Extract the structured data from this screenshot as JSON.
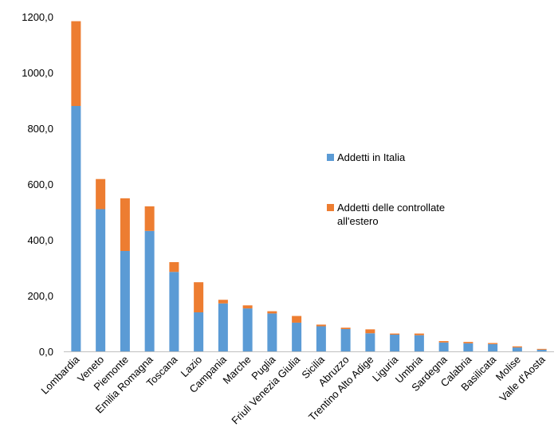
{
  "chart_data": {
    "type": "bar",
    "stacked": true,
    "categories": [
      "Lombardia",
      "Veneto",
      "Piemonte",
      "Emilia Romagna",
      "Toscana",
      "Lazio",
      "Campania",
      "Marche",
      "Puglia",
      "Friuli Venezia Giulia",
      "Sicilia",
      "Abruzzo",
      "Trentino Alto Adige",
      "Liguria",
      "Umbria",
      "Sardegna",
      "Calabria",
      "Basilicata",
      "Molise",
      "Valle d'Aosta"
    ],
    "series": [
      {
        "name": "Addetti in Italia",
        "color": "#5b9bd5",
        "values": [
          880,
          510,
          360,
          432,
          285,
          140,
          172,
          154,
          136,
          103,
          90,
          80,
          65,
          60,
          58,
          32,
          29,
          26,
          14,
          6
        ]
      },
      {
        "name": "Addetti delle controllate all'estero",
        "color": "#ed7d31",
        "values": [
          304,
          108,
          189,
          88,
          35,
          108,
          13,
          11,
          8,
          24,
          6,
          5,
          14,
          4,
          6,
          5,
          5,
          4,
          4,
          3
        ]
      }
    ],
    "legend": {
      "position": "right",
      "entries": [
        "Addetti in Italia",
        "Addetti delle controllate all'estero"
      ]
    },
    "y_ticks": [
      "0,0",
      "200,0",
      "400,0",
      "600,0",
      "800,0",
      "1000,0",
      "1200,0"
    ],
    "ylim": [
      0,
      1200
    ],
    "grid": false,
    "title": "",
    "xlabel": "",
    "ylabel": ""
  }
}
